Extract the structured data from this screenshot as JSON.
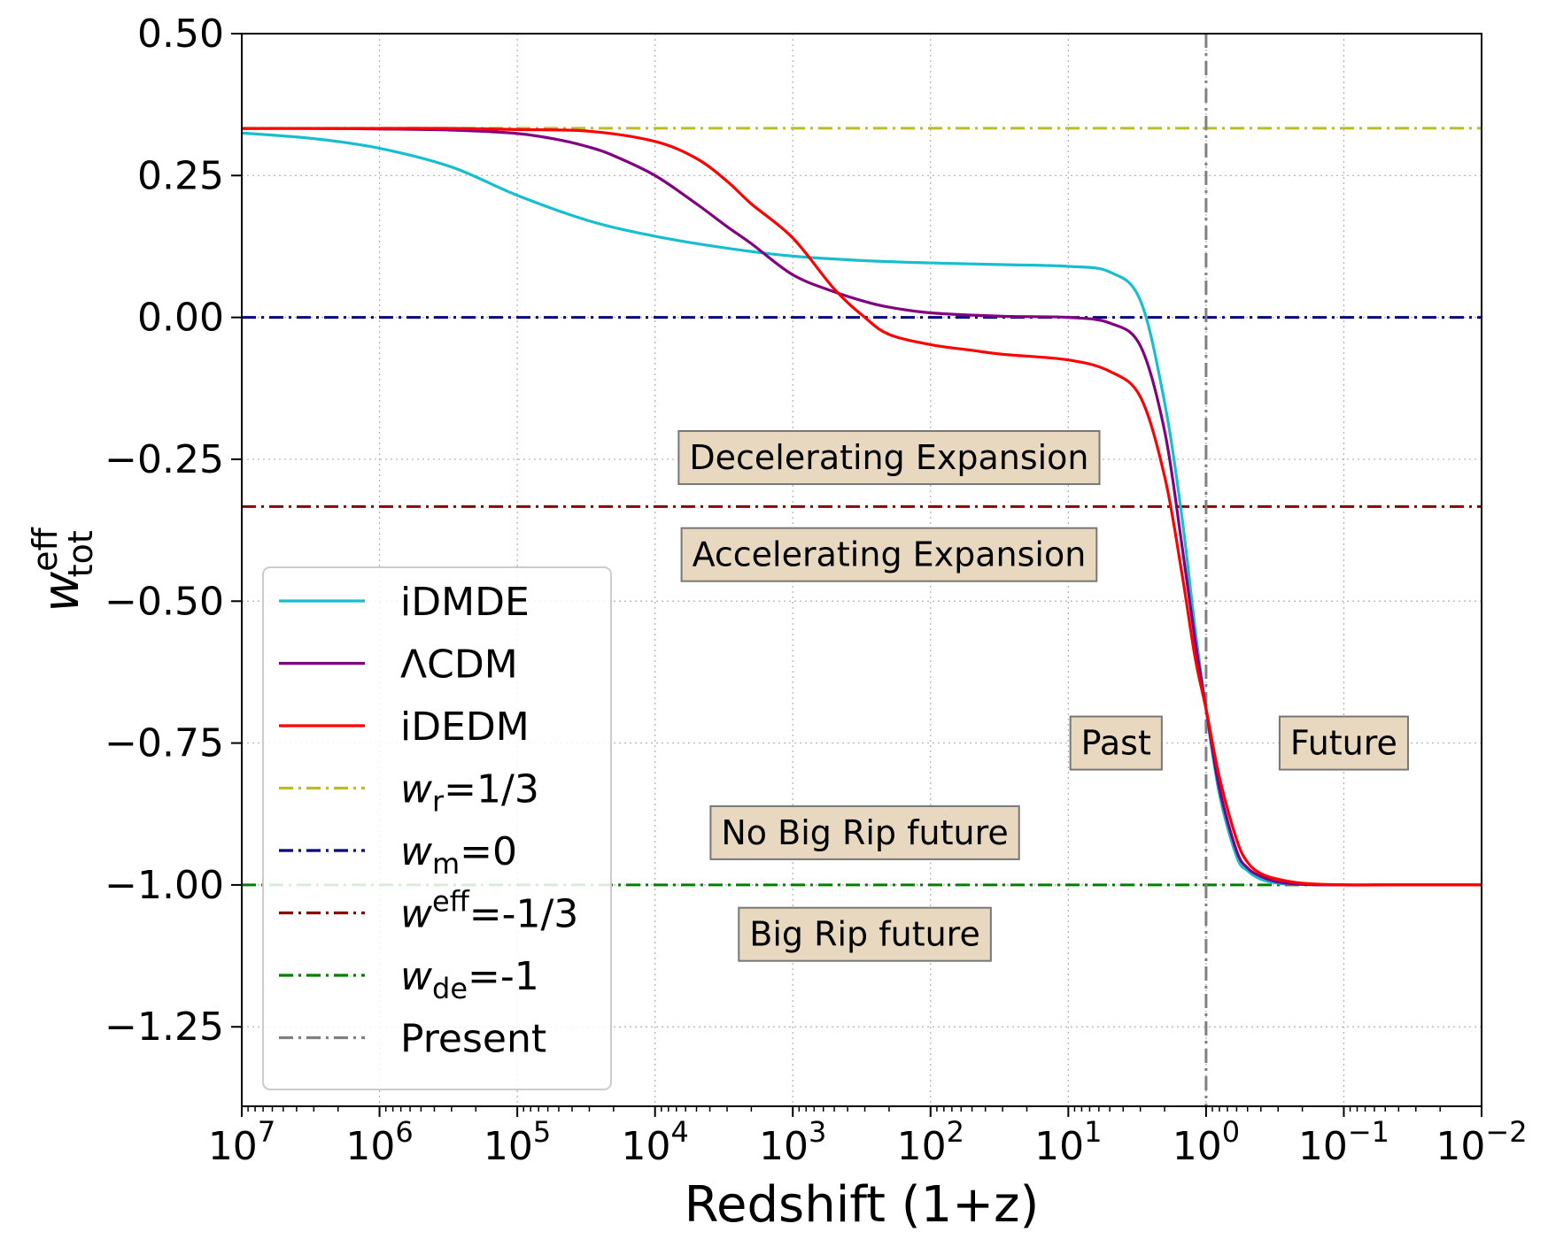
{
  "chart_data": {
    "type": "line",
    "title": "",
    "xlabel": "Redshift (1+z)",
    "ylabel": "w_tot^eff",
    "ylabel_main": "w",
    "ylabel_sup": "eff",
    "ylabel_sub": "tot",
    "x_scale": "log",
    "x_reversed": true,
    "xlim": [
      10000000,
      0.01
    ],
    "ylim": [
      -1.39,
      0.5
    ],
    "grid": true,
    "x_ticks": [
      {
        "value": 10000000,
        "base": "10",
        "exp": "7"
      },
      {
        "value": 1000000,
        "base": "10",
        "exp": "6"
      },
      {
        "value": 100000,
        "base": "10",
        "exp": "5"
      },
      {
        "value": 10000,
        "base": "10",
        "exp": "4"
      },
      {
        "value": 1000,
        "base": "10",
        "exp": "3"
      },
      {
        "value": 100,
        "base": "10",
        "exp": "2"
      },
      {
        "value": 10,
        "base": "10",
        "exp": "1"
      },
      {
        "value": 1,
        "base": "10",
        "exp": "0"
      },
      {
        "value": 0.1,
        "base": "10",
        "exp": "−1"
      },
      {
        "value": 0.01,
        "base": "10",
        "exp": "−2"
      }
    ],
    "y_ticks": [
      {
        "value": 0.5,
        "label": "0.50"
      },
      {
        "value": 0.25,
        "label": "0.25"
      },
      {
        "value": 0.0,
        "label": "0.00"
      },
      {
        "value": -0.25,
        "label": "−0.25"
      },
      {
        "value": -0.5,
        "label": "−0.50"
      },
      {
        "value": -0.75,
        "label": "−0.75"
      },
      {
        "value": -1.0,
        "label": "−1.00"
      },
      {
        "value": -1.25,
        "label": "−1.25"
      }
    ],
    "series": [
      {
        "name": "iDMDE",
        "color": "#17becf",
        "style": "solid",
        "x": [
          10000000,
          3000000,
          1000000,
          300000,
          100000,
          30000,
          10000,
          3000,
          1000,
          300,
          100,
          30,
          10,
          5,
          3,
          2,
          1.5,
          1.2,
          1,
          0.8,
          0.6,
          0.5,
          0.4,
          0.3,
          0.2,
          0.1,
          0.05,
          0.01
        ],
        "y": [
          0.325,
          0.315,
          0.298,
          0.265,
          0.215,
          0.17,
          0.143,
          0.122,
          0.108,
          0.1,
          0.096,
          0.093,
          0.09,
          0.08,
          0.03,
          -0.15,
          -0.35,
          -0.55,
          -0.69,
          -0.84,
          -0.95,
          -0.975,
          -0.99,
          -0.997,
          -0.999,
          -1.0,
          -1.0,
          -1.0
        ]
      },
      {
        "name": "ΛCDM",
        "color": "#800080",
        "style": "solid",
        "x": [
          10000000,
          3000000,
          1000000,
          300000,
          100000,
          50000,
          30000,
          20000,
          10000,
          5000,
          3000,
          2000,
          1000,
          500,
          300,
          200,
          100,
          30,
          10,
          5,
          3,
          2,
          1.5,
          1.2,
          1,
          0.8,
          0.6,
          0.5,
          0.4,
          0.3,
          0.2,
          0.1,
          0.05,
          0.01
        ],
        "y": [
          0.333,
          0.333,
          0.332,
          0.33,
          0.324,
          0.313,
          0.3,
          0.285,
          0.25,
          0.2,
          0.16,
          0.13,
          0.075,
          0.045,
          0.028,
          0.018,
          0.008,
          0.002,
          0.0,
          -0.01,
          -0.05,
          -0.2,
          -0.4,
          -0.57,
          -0.69,
          -0.83,
          -0.94,
          -0.97,
          -0.985,
          -0.995,
          -0.999,
          -1.0,
          -1.0,
          -1.0
        ]
      },
      {
        "name": "iDEDM",
        "color": "#ff0000",
        "style": "solid",
        "x": [
          10000000,
          3000000,
          1000000,
          300000,
          100000,
          30000,
          10000,
          5000,
          3000,
          2000,
          1000,
          500,
          300,
          200,
          100,
          50,
          30,
          10,
          5,
          3,
          2,
          1.5,
          1.2,
          1,
          0.8,
          0.6,
          0.5,
          0.4,
          0.3,
          0.2,
          0.1,
          0.05,
          0.01
        ],
        "y": [
          0.333,
          0.333,
          0.333,
          0.333,
          0.331,
          0.328,
          0.31,
          0.28,
          0.24,
          0.2,
          0.14,
          0.05,
          0.0,
          -0.03,
          -0.048,
          -0.058,
          -0.065,
          -0.075,
          -0.095,
          -0.14,
          -0.28,
          -0.45,
          -0.6,
          -0.69,
          -0.81,
          -0.92,
          -0.96,
          -0.98,
          -0.99,
          -0.997,
          -1.0,
          -1.0,
          -1.0
        ]
      }
    ],
    "reference_lines": [
      {
        "name": "w_r=1/3",
        "orientation": "horizontal",
        "value": 0.3333,
        "color": "#bcbd22",
        "style": "dashdot"
      },
      {
        "name": "w_m=0",
        "orientation": "horizontal",
        "value": 0.0,
        "color": "#00007f",
        "style": "dashdot"
      },
      {
        "name": "w^eff=-1/3",
        "orientation": "horizontal",
        "value": -0.3333,
        "color": "#8b0000",
        "style": "dashdot"
      },
      {
        "name": "w_de=-1",
        "orientation": "horizontal",
        "value": -1.0,
        "color": "#008000",
        "style": "dashdot"
      },
      {
        "name": "Present",
        "orientation": "vertical",
        "value": 1,
        "color": "#808080",
        "style": "dashdot"
      }
    ],
    "annotations": [
      {
        "text": "Decelerating Expansion",
        "x": 200,
        "y": -0.247
      },
      {
        "text": "Accelerating Expansion",
        "x": 200,
        "y": -0.418
      },
      {
        "text": "Past",
        "x": 4.5,
        "y": -0.75
      },
      {
        "text": "Future",
        "x": 0.1,
        "y": -0.75
      },
      {
        "text": "No Big Rip future",
        "x": 300,
        "y": -0.908
      },
      {
        "text": "Big Rip future",
        "x": 300,
        "y": -1.087
      }
    ],
    "annotation_style": {
      "fill": "#e8d8c0",
      "stroke": "#777777"
    },
    "legend": {
      "position": "lower-left",
      "entries": [
        {
          "label": "iDMDE",
          "main": "iDMDE",
          "script": "",
          "script_type": "",
          "tail": "",
          "color": "#17becf",
          "style": "solid"
        },
        {
          "label": "ΛCDM",
          "main": "ΛCDM",
          "script": "",
          "script_type": "",
          "tail": "",
          "color": "#800080",
          "style": "solid"
        },
        {
          "label": "iDEDM",
          "main": "iDEDM",
          "script": "",
          "script_type": "",
          "tail": "",
          "color": "#ff0000",
          "style": "solid"
        },
        {
          "label": "w_r=1/3",
          "main": "w",
          "script": "r",
          "script_type": "sub",
          "tail": "=1/3",
          "color": "#bcbd22",
          "style": "dashdot"
        },
        {
          "label": "w_m=0",
          "main": "w",
          "script": "m",
          "script_type": "sub",
          "tail": "=0",
          "color": "#00007f",
          "style": "dashdot"
        },
        {
          "label": "w^eff=-1/3",
          "main": "w",
          "script": "eff",
          "script_type": "sup",
          "tail": "=-1/3",
          "color": "#8b0000",
          "style": "dashdot"
        },
        {
          "label": "w_de=-1",
          "main": "w",
          "script": "de",
          "script_type": "sub",
          "tail": "=-1",
          "color": "#008000",
          "style": "dashdot"
        },
        {
          "label": "Present",
          "main": "Present",
          "script": "",
          "script_type": "",
          "tail": "",
          "color": "#808080",
          "style": "dashdot"
        }
      ]
    }
  }
}
